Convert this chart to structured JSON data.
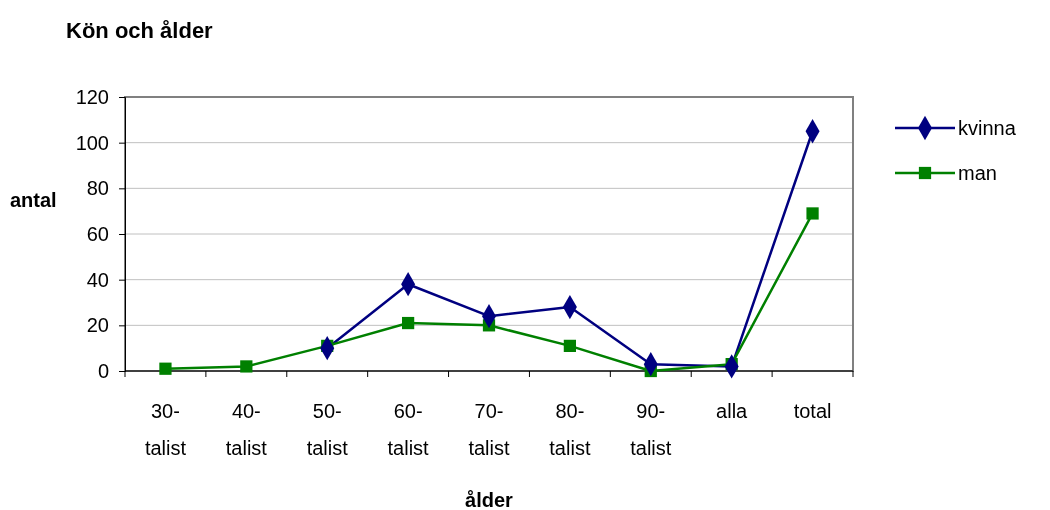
{
  "chart_data": {
    "type": "line",
    "title": "Kön och ålder",
    "xlabel": "ålder",
    "ylabel": "antal",
    "categories": [
      "30-talist",
      "40-talist",
      "50-talist",
      "60-talist",
      "70-talist",
      "80-talist",
      "90-talist",
      "alla",
      "total"
    ],
    "series": [
      {
        "name": "kvinna",
        "color": "#000080",
        "marker": "diamond",
        "values": [
          null,
          null,
          10,
          38,
          24,
          28,
          3,
          2,
          105
        ]
      },
      {
        "name": "man",
        "color": "#008000",
        "marker": "square",
        "values": [
          1,
          2,
          11,
          21,
          20,
          11,
          0,
          3,
          69
        ]
      }
    ],
    "ylim": [
      0,
      120
    ],
    "yticks": [
      0,
      20,
      40,
      60,
      80,
      100,
      120
    ],
    "grid": "y",
    "legend": "right",
    "line_style": "solid"
  }
}
